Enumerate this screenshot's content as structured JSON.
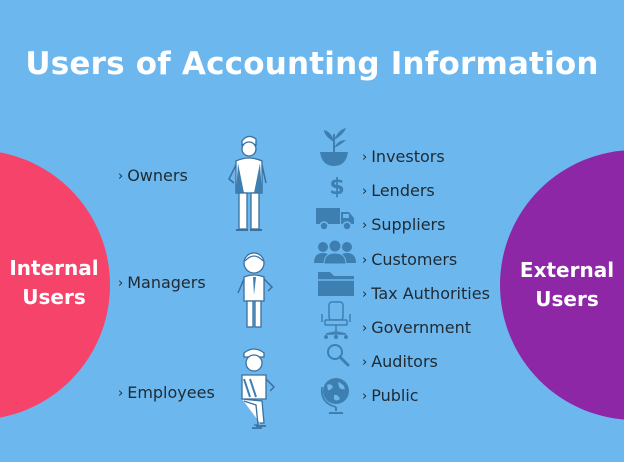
{
  "title": "Users of Accounting Information",
  "internal": {
    "label_line1": "Internal",
    "label_line2": "Users",
    "color": "#f5436a",
    "items": [
      "Owners",
      "Managers",
      "Employees"
    ]
  },
  "external": {
    "label_line1": "External",
    "label_line2": "Users",
    "color": "#8d27a6",
    "items": [
      "Investors",
      "Lenders",
      "Suppliers",
      "Customers",
      "Tax Authorities",
      "Government",
      "Auditors",
      "Public"
    ]
  },
  "icons": {
    "internal": [
      "owner-figure-icon",
      "manager-figure-icon",
      "employee-figure-icon"
    ],
    "external": [
      "plant-bowl-icon",
      "dollar-icon",
      "truck-icon",
      "people-group-icon",
      "folder-icon",
      "office-chair-icon",
      "magnifier-icon",
      "globe-icon"
    ]
  },
  "chevron": "›",
  "background": "#6cb8ee"
}
